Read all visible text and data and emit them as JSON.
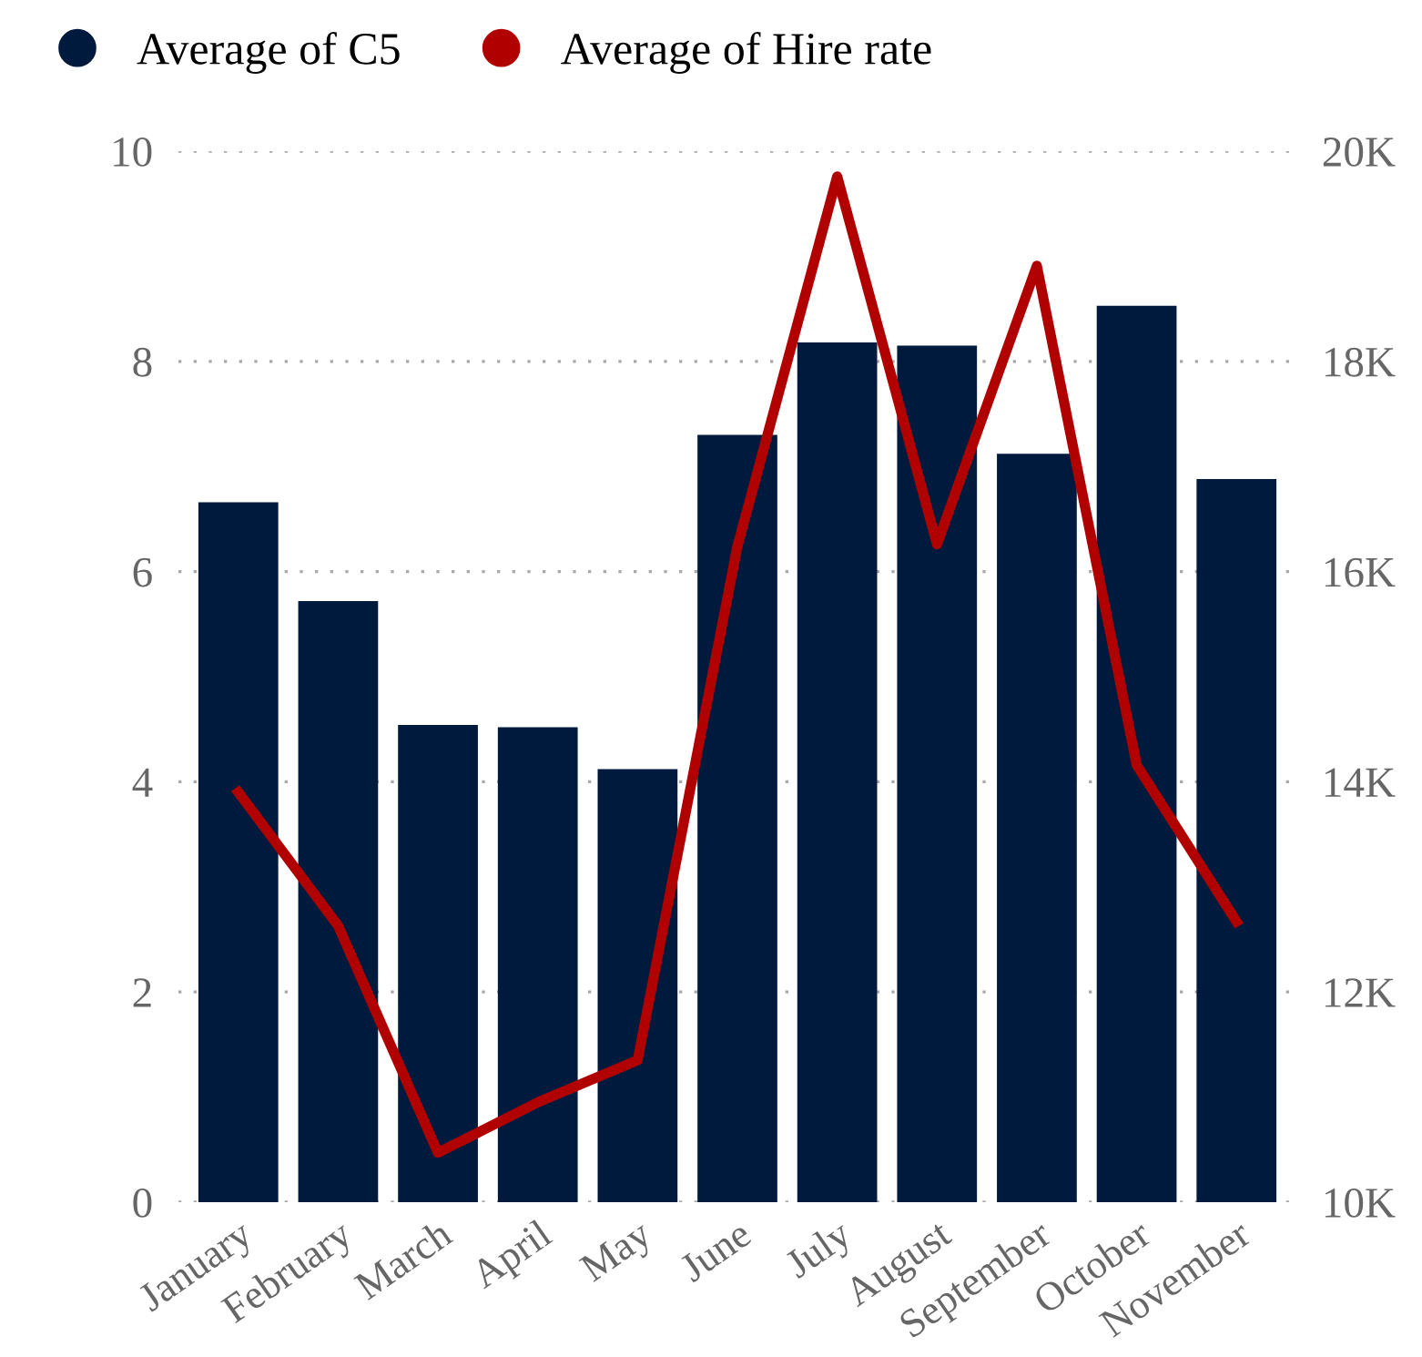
{
  "chart_data": {
    "type": "bar",
    "categories": [
      "January",
      "February",
      "March",
      "April",
      "May",
      "June",
      "July",
      "August",
      "September",
      "October",
      "November"
    ],
    "series": [
      {
        "name": "Average of C5",
        "color": "#001a3d",
        "values": [
          6.66,
          5.72,
          4.54,
          4.52,
          4.12,
          7.3,
          8.18,
          8.15,
          7.12,
          8.53,
          6.88
        ]
      },
      {
        "name": "Average of Hire rate",
        "type": "line",
        "axis": "y2",
        "color": "#b00000",
        "values": [
          13900,
          12630,
          10470,
          10950,
          11350,
          16240,
          19760,
          16260,
          18910,
          14160,
          12670
        ]
      }
    ],
    "ylim": [
      0,
      10
    ],
    "yticks": [
      0,
      2,
      4,
      6,
      8,
      10
    ],
    "y2lim": [
      10000,
      20000
    ],
    "y2ticks": [
      {
        "value": 10000,
        "label": "10K"
      },
      {
        "value": 12000,
        "label": "12K"
      },
      {
        "value": 14000,
        "label": "14K"
      },
      {
        "value": 16000,
        "label": "16K"
      },
      {
        "value": 18000,
        "label": "18K"
      },
      {
        "value": 20000,
        "label": "20K"
      }
    ],
    "grid": "y",
    "legend": "top left",
    "marker": "none"
  }
}
